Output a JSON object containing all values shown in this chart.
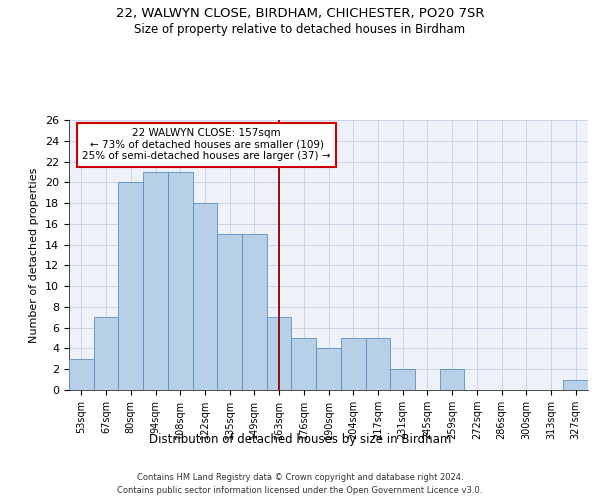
{
  "title1": "22, WALWYN CLOSE, BIRDHAM, CHICHESTER, PO20 7SR",
  "title2": "Size of property relative to detached houses in Birdham",
  "xlabel": "Distribution of detached houses by size in Birdham",
  "ylabel": "Number of detached properties",
  "categories": [
    "53sqm",
    "67sqm",
    "80sqm",
    "94sqm",
    "108sqm",
    "122sqm",
    "135sqm",
    "149sqm",
    "163sqm",
    "176sqm",
    "190sqm",
    "204sqm",
    "217sqm",
    "231sqm",
    "245sqm",
    "259sqm",
    "272sqm",
    "286sqm",
    "300sqm",
    "313sqm",
    "327sqm"
  ],
  "values": [
    3,
    7,
    20,
    21,
    21,
    18,
    15,
    15,
    7,
    5,
    4,
    5,
    5,
    2,
    0,
    2,
    0,
    0,
    0,
    0,
    1
  ],
  "bar_color": "#b8cfe8",
  "bar_edge_color": "#5a8fc0",
  "highlight_line_color": "#8b0000",
  "annotation_title": "22 WALWYN CLOSE: 157sqm",
  "annotation_line1": "← 73% of detached houses are smaller (109)",
  "annotation_line2": "25% of semi-detached houses are larger (37) →",
  "annotation_box_color": "#ffffff",
  "annotation_box_edge": "#cc0000",
  "ylim": [
    0,
    26
  ],
  "yticks": [
    0,
    2,
    4,
    6,
    8,
    10,
    12,
    14,
    16,
    18,
    20,
    22,
    24,
    26
  ],
  "footer1": "Contains HM Land Registry data © Crown copyright and database right 2024.",
  "footer2": "Contains public sector information licensed under the Open Government Licence v3.0.",
  "background_color": "#eef2f8",
  "grid_color": "#c8d4e8"
}
